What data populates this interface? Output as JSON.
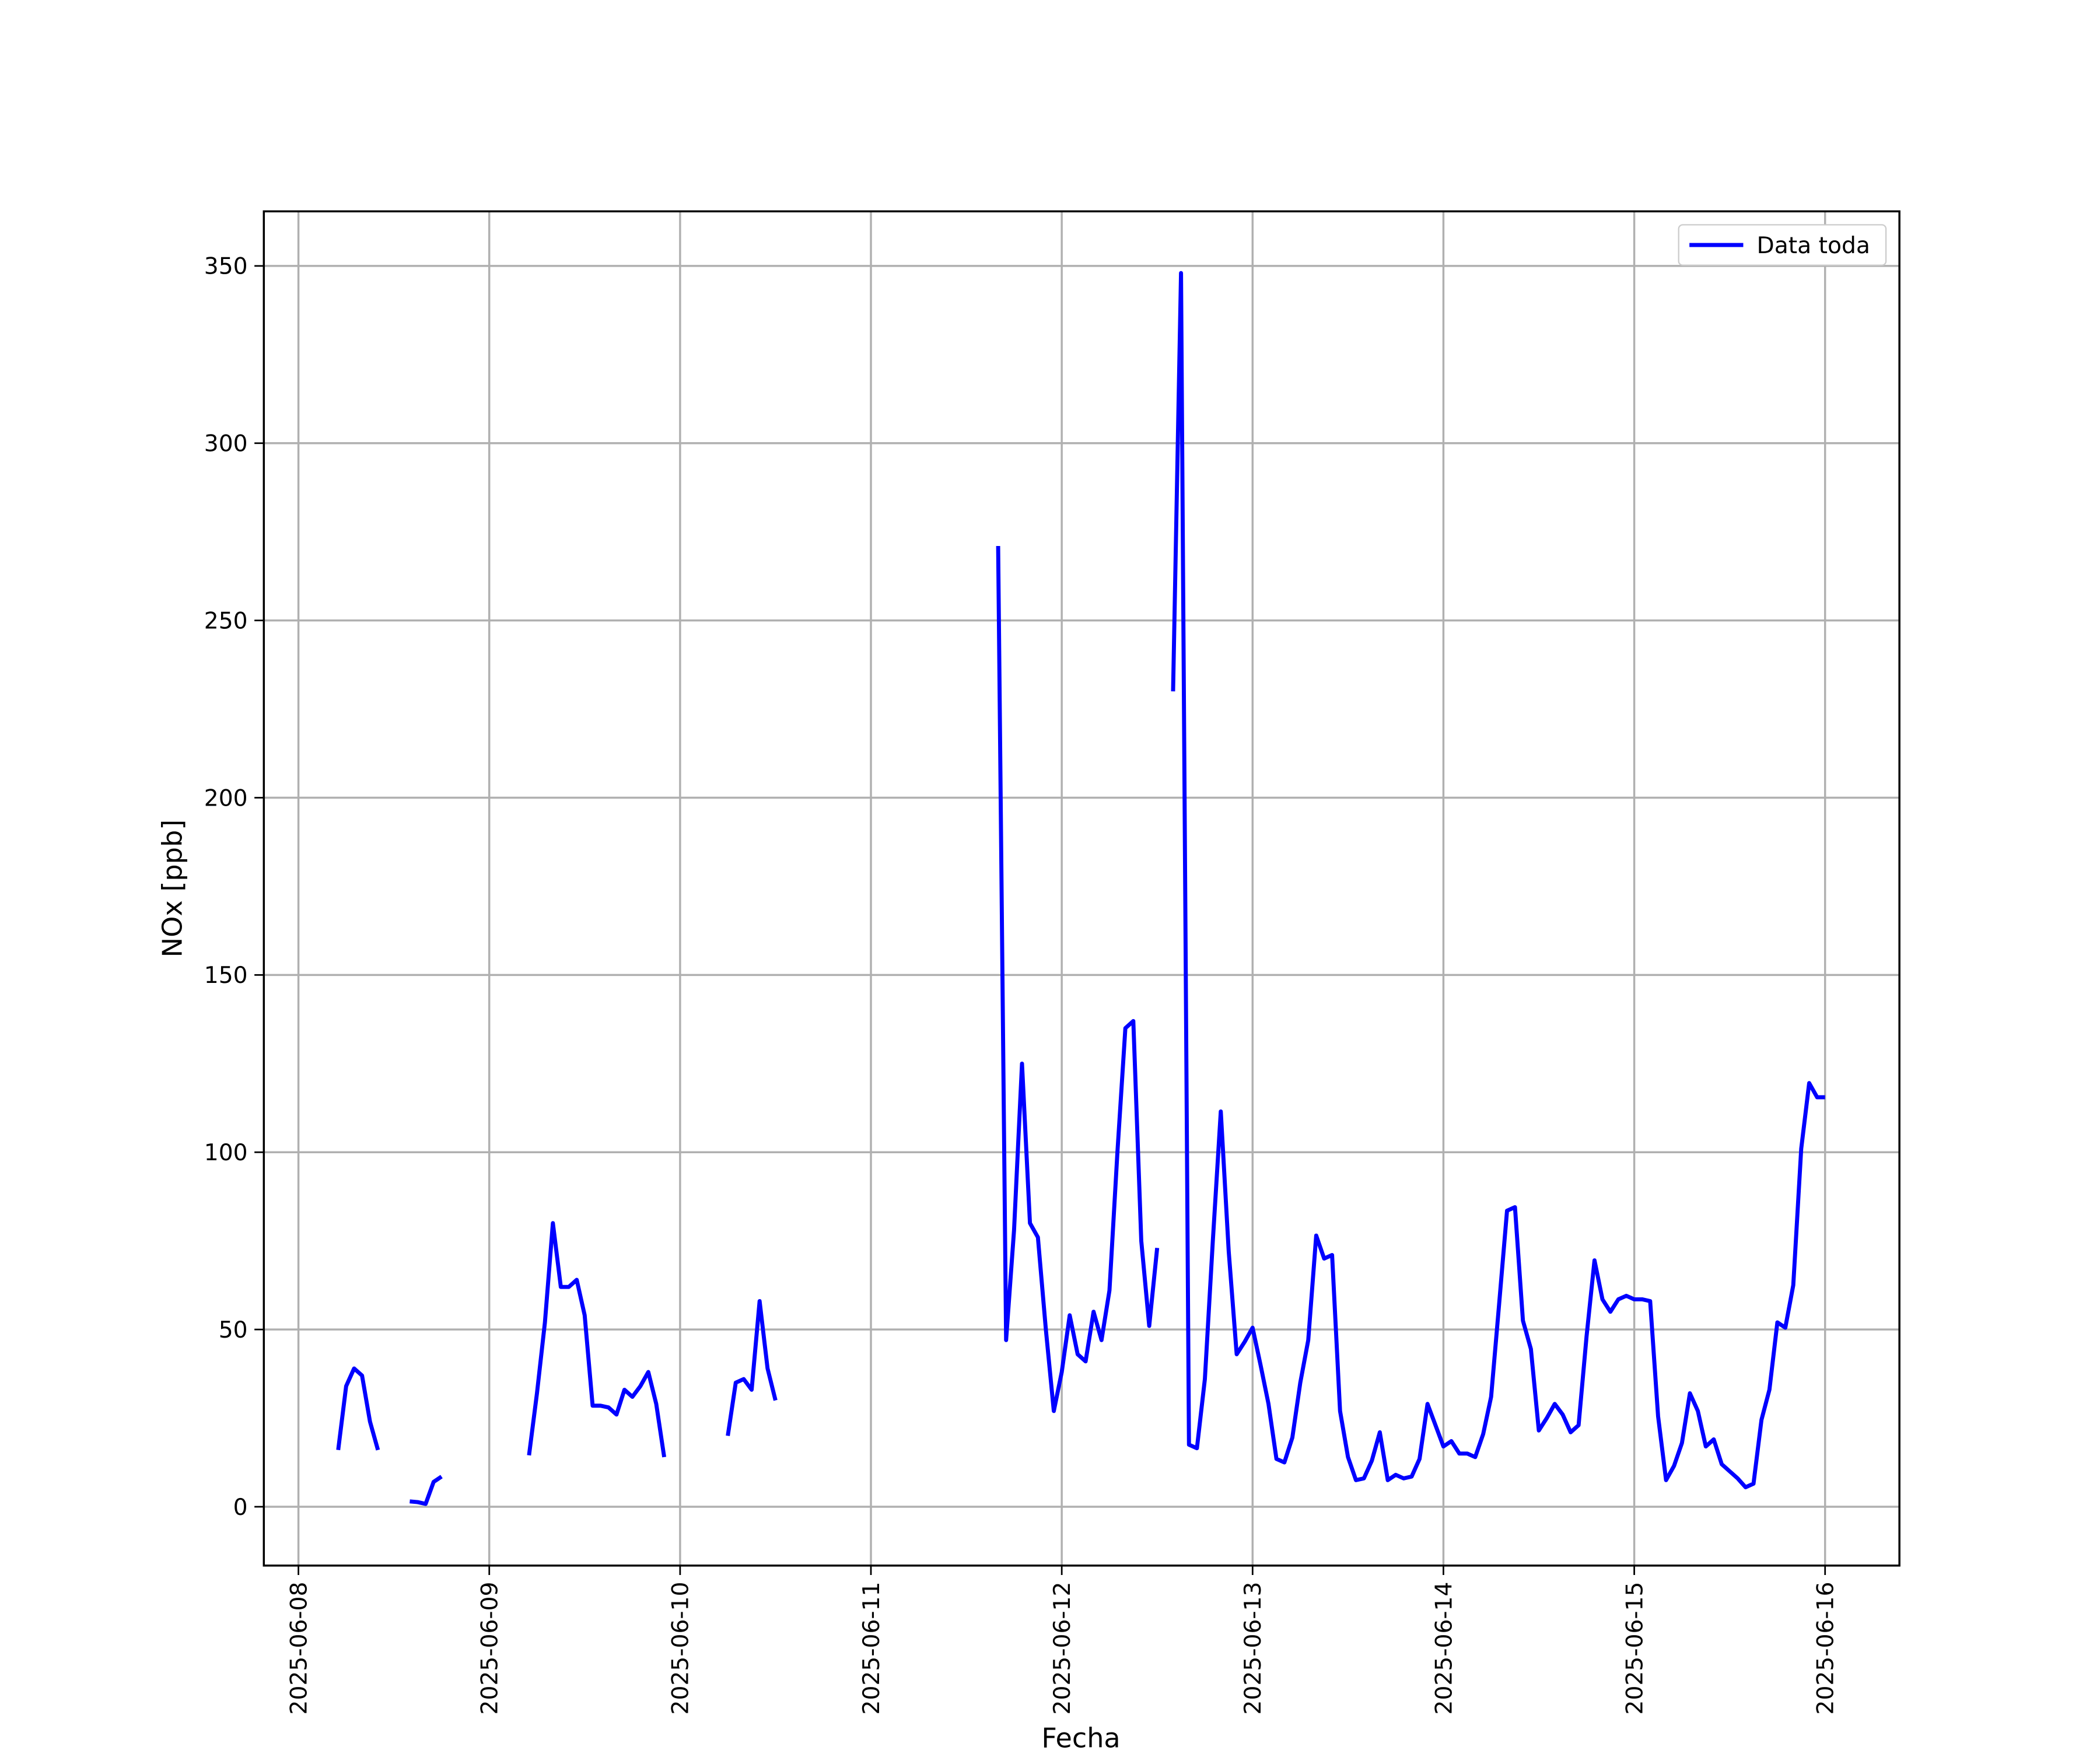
{
  "chart_data": {
    "type": "line",
    "x_label": "Fecha",
    "y_label": "NOx [ppb]",
    "grid": true,
    "legend": "upper right",
    "xlim": [
      "2025-06-07 19:39",
      "2025-06-16 09:21"
    ],
    "ylim": [
      -16.6,
      365.4
    ],
    "xticks": [
      "2025-06-08",
      "2025-06-09",
      "2025-06-10",
      "2025-06-11",
      "2025-06-12",
      "2025-06-13",
      "2025-06-14",
      "2025-06-15",
      "2025-06-16"
    ],
    "yticks": [
      0,
      50,
      100,
      150,
      200,
      250,
      300,
      350
    ],
    "x": [
      "2025-06-08 05:00",
      "2025-06-08 06:00",
      "2025-06-08 07:00",
      "2025-06-08 08:00",
      "2025-06-08 09:00",
      "2025-06-08 10:00",
      "2025-06-08 11:00",
      "2025-06-08 14:00",
      "2025-06-08 15:00",
      "2025-06-08 16:00",
      "2025-06-08 17:00",
      "2025-06-08 18:00",
      "2025-06-08 19:00",
      "2025-06-09 05:00",
      "2025-06-09 06:00",
      "2025-06-09 07:00",
      "2025-06-09 08:00",
      "2025-06-09 09:00",
      "2025-06-09 10:00",
      "2025-06-09 11:00",
      "2025-06-09 12:00",
      "2025-06-09 13:00",
      "2025-06-09 14:00",
      "2025-06-09 15:00",
      "2025-06-09 16:00",
      "2025-06-09 17:00",
      "2025-06-09 18:00",
      "2025-06-09 19:00",
      "2025-06-09 20:00",
      "2025-06-09 21:00",
      "2025-06-09 22:00",
      "2025-06-09 23:00",
      "2025-06-10 06:00",
      "2025-06-10 07:00",
      "2025-06-10 08:00",
      "2025-06-10 09:00",
      "2025-06-10 10:00",
      "2025-06-10 11:00",
      "2025-06-10 12:00",
      "2025-06-10 13:00",
      "2025-06-11 16:00",
      "2025-06-11 17:00",
      "2025-06-11 18:00",
      "2025-06-11 19:00",
      "2025-06-11 20:00",
      "2025-06-11 21:00",
      "2025-06-11 22:00",
      "2025-06-11 23:00",
      "2025-06-12 00:00",
      "2025-06-12 01:00",
      "2025-06-12 02:00",
      "2025-06-12 03:00",
      "2025-06-12 04:00",
      "2025-06-12 05:00",
      "2025-06-12 06:00",
      "2025-06-12 07:00",
      "2025-06-12 08:00",
      "2025-06-12 09:00",
      "2025-06-12 10:00",
      "2025-06-12 11:00",
      "2025-06-12 12:00",
      "2025-06-12 13:00",
      "2025-06-12 14:00",
      "2025-06-12 15:00",
      "2025-06-12 16:00",
      "2025-06-12 17:00",
      "2025-06-12 18:00",
      "2025-06-12 19:00",
      "2025-06-12 20:00",
      "2025-06-12 21:00",
      "2025-06-12 22:00",
      "2025-06-12 23:00",
      "2025-06-13 00:00",
      "2025-06-13 01:00",
      "2025-06-13 02:00",
      "2025-06-13 03:00",
      "2025-06-13 04:00",
      "2025-06-13 05:00",
      "2025-06-13 06:00",
      "2025-06-13 07:00",
      "2025-06-13 08:00",
      "2025-06-13 09:00",
      "2025-06-13 10:00",
      "2025-06-13 11:00",
      "2025-06-13 12:00",
      "2025-06-13 13:00",
      "2025-06-13 14:00",
      "2025-06-13 15:00",
      "2025-06-13 16:00",
      "2025-06-13 17:00",
      "2025-06-13 18:00",
      "2025-06-13 19:00",
      "2025-06-13 20:00",
      "2025-06-13 21:00",
      "2025-06-13 22:00",
      "2025-06-13 23:00",
      "2025-06-14 00:00",
      "2025-06-14 01:00",
      "2025-06-14 02:00",
      "2025-06-14 03:00",
      "2025-06-14 04:00",
      "2025-06-14 05:00",
      "2025-06-14 06:00",
      "2025-06-14 07:00",
      "2025-06-14 08:00",
      "2025-06-14 09:00",
      "2025-06-14 10:00",
      "2025-06-14 11:00",
      "2025-06-14 12:00",
      "2025-06-14 13:00",
      "2025-06-14 14:00",
      "2025-06-14 15:00",
      "2025-06-14 16:00",
      "2025-06-14 17:00",
      "2025-06-14 18:00",
      "2025-06-14 19:00",
      "2025-06-14 20:00",
      "2025-06-14 21:00",
      "2025-06-14 22:00",
      "2025-06-14 23:00",
      "2025-06-15 00:00",
      "2025-06-15 01:00",
      "2025-06-15 02:00",
      "2025-06-15 03:00",
      "2025-06-15 04:00",
      "2025-06-15 05:00",
      "2025-06-15 06:00",
      "2025-06-15 07:00",
      "2025-06-15 08:00",
      "2025-06-15 09:00",
      "2025-06-15 10:00",
      "2025-06-15 11:00",
      "2025-06-15 12:00",
      "2025-06-15 13:00",
      "2025-06-15 14:00",
      "2025-06-15 15:00",
      "2025-06-15 16:00",
      "2025-06-15 17:00",
      "2025-06-15 18:00",
      "2025-06-15 19:00",
      "2025-06-15 20:00",
      "2025-06-15 21:00",
      "2025-06-15 22:00",
      "2025-06-15 23:00",
      "2025-06-16 00:00"
    ],
    "series": [
      {
        "name": "Data toda",
        "color": "#0000ff",
        "values": [
          16,
          34,
          39,
          37,
          24,
          16,
          null,
          1.5,
          1.3,
          0.8,
          7,
          8.5,
          null,
          14.5,
          32,
          52,
          80,
          62,
          62,
          64,
          54,
          28.5,
          28.5,
          28,
          26,
          33,
          31,
          34,
          38,
          29,
          14,
          null,
          20,
          35,
          36,
          33,
          58,
          39,
          30,
          null,
          271,
          47,
          78,
          125,
          80,
          76,
          50,
          27,
          38,
          54,
          43,
          41,
          55,
          47,
          61,
          100,
          135,
          137,
          75,
          51,
          73,
          null,
          230,
          348,
          17.5,
          16.5,
          36,
          75,
          111.5,
          72,
          43,
          46.5,
          50.5,
          40,
          29,
          13.5,
          12.5,
          19.5,
          35,
          47,
          76.5,
          70,
          71,
          27,
          14,
          7.5,
          8,
          13,
          21,
          7.5,
          9,
          8,
          8.5,
          13.5,
          29,
          23,
          17,
          18.5,
          15,
          15,
          14,
          20.5,
          31,
          57,
          83.5,
          84.5,
          52.5,
          44.5,
          21.5,
          25,
          29,
          26,
          21,
          23,
          48,
          69.5,
          58.5,
          55,
          58.5,
          59.5,
          58.5,
          58.5,
          58,
          25.5,
          7.5,
          11.5,
          18,
          32,
          27,
          17,
          19,
          12,
          10,
          8,
          5.5,
          6.5,
          24.5,
          33,
          52,
          50.5,
          62.5,
          101,
          119.5,
          115.5,
          115.5
        ]
      }
    ]
  }
}
